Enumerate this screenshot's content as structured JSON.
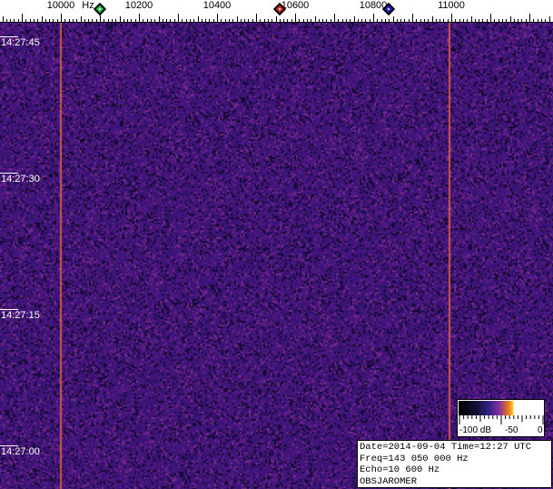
{
  "chart_data": {
    "type": "heatmap",
    "xlabel": "Hz",
    "x_ticks": [
      10000,
      10200,
      10400,
      10600,
      10800,
      11000
    ],
    "x_tick_labels": [
      "10000",
      "10200",
      "10400",
      "10600",
      "10800",
      "11000"
    ],
    "y_ticks": [
      "14:27:45",
      "14:27:30",
      "14:27:15",
      "14:27:00"
    ],
    "colorbar": {
      "labels": [
        "-100 dB",
        "-50",
        "0"
      ],
      "range_db": [
        -100,
        0
      ]
    },
    "carriers_hz": [
      10000,
      11000
    ],
    "markers": [
      {
        "color": "#22cc44",
        "freq_hz": 10100
      },
      {
        "color": "#dd2222",
        "freq_hz": 10560
      },
      {
        "color": "#2222cc",
        "freq_hz": 10840
      }
    ]
  },
  "info": {
    "line1": "Date=2014-09-04 Time=12:27 UTC",
    "line2": "Freq=143 050 000 Hz",
    "line3": "Echo=10 600 Hz",
    "line4": "OBSJAROMER"
  },
  "colors": {
    "background_noise": "#3a1878",
    "carrier": "#c85050"
  }
}
